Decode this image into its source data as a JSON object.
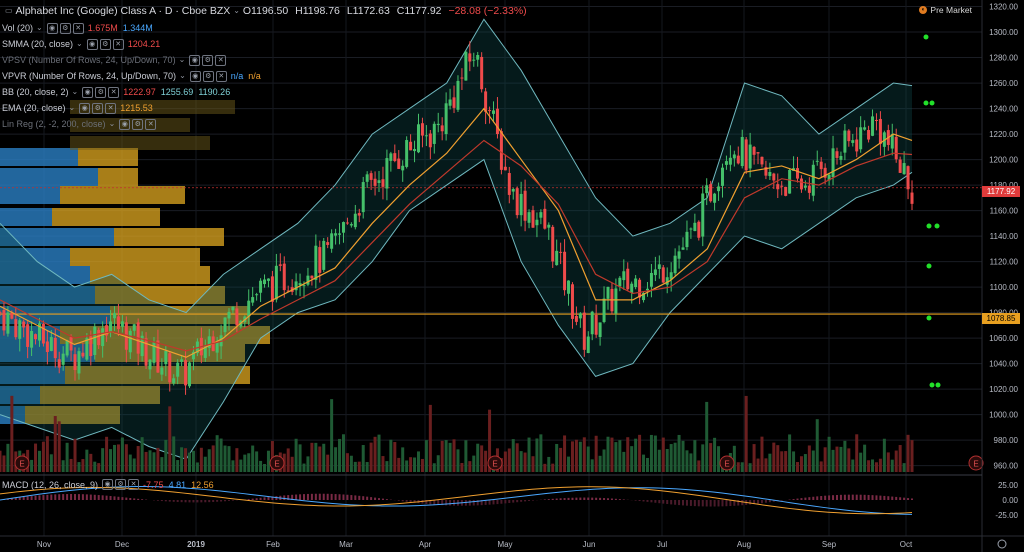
{
  "header": {
    "title": "Alphabet Inc (Google) Class A · D · Cboe BZX",
    "open": "O1196.50",
    "high": "H1198.76",
    "low": "L1172.63",
    "close": "C1177.92",
    "change": "−28.08 (−2.33%)",
    "pre_market": "Pre Market"
  },
  "indicators": [
    {
      "label": "Vol (20)",
      "values": [
        "1.675M",
        "1.344M"
      ],
      "colors": [
        "#ef4b4b",
        "#4aa8ff"
      ]
    },
    {
      "label": "SMMA (20, close)",
      "values": [
        "1204.21"
      ],
      "colors": [
        "#ef4b4b"
      ]
    },
    {
      "label": "VPSV (Number Of Rows, 24, Up/Down, 70)",
      "values": [],
      "colors": []
    },
    {
      "label": "VPVR (Number Of Rows, 24, Up/Down, 70)",
      "values": [
        "n/a",
        "n/a"
      ],
      "colors": [
        "#4aa8ff",
        "#f0a030"
      ]
    },
    {
      "label": "BB (20, close, 2)",
      "values": [
        "1222.97",
        "1255.69",
        "1190.26"
      ],
      "colors": [
        "#ef4b4b",
        "#7fd0d6",
        "#7fd0d6"
      ]
    },
    {
      "label": "EMA (20, close)",
      "values": [
        "1215.53"
      ],
      "colors": [
        "#f0a030"
      ]
    },
    {
      "label": "Lin Reg (2, -2, 200, close)",
      "values": [],
      "colors": []
    }
  ],
  "macd": {
    "label": "MACD (12, 26, close, 9)",
    "values": [
      "-7.75",
      "4.81",
      "12.56"
    ],
    "colors": [
      "#ef4b4b",
      "#4aa8ff",
      "#f0a030"
    ]
  },
  "price_tags": {
    "last": "1177.92",
    "poc": "1078.85"
  },
  "colors": {
    "up": "#45c06a",
    "down": "#ef4b4b",
    "bb": "#6fb8bf",
    "ema": "#f0a030",
    "smma": "#c0392b",
    "vp_up": "#2a7fc4",
    "vp_down": "#e0a820"
  },
  "chart_data": {
    "type": "candlestick",
    "x_ticks": [
      "Nov",
      "Dec",
      "2019",
      "Feb",
      "Mar",
      "Apr",
      "May",
      "Jun",
      "Jul",
      "Aug",
      "Sep",
      "Oct"
    ],
    "y_ticks": [
      "1320.00",
      "1300.00",
      "1280.00",
      "1260.00",
      "1240.00",
      "1220.00",
      "1200.00",
      "1180.00",
      "1160.00",
      "1140.00",
      "1120.00",
      "1100.00",
      "1080.00",
      "1060.00",
      "1040.00",
      "1020.00",
      "1000.00",
      "980.00",
      "960.00"
    ],
    "ylim": [
      955,
      1322
    ],
    "macd_ticks": [
      "25.00",
      "0.00",
      "-25.00"
    ],
    "macd_lim": [
      -40,
      40
    ],
    "earnings_markers": [
      "E",
      "E",
      "E",
      "E",
      "E"
    ],
    "x_dates": [
      "2018-10-24",
      "2018-11-07",
      "2018-11-21",
      "2018-12-05",
      "2018-12-19",
      "2019-01-02",
      "2019-01-16",
      "2019-01-30",
      "2019-02-13",
      "2019-02-27",
      "2019-03-13",
      "2019-03-27",
      "2019-04-10",
      "2019-04-24",
      "2019-05-08",
      "2019-05-22",
      "2019-06-05",
      "2019-06-19",
      "2019-07-03",
      "2019-07-17",
      "2019-07-31",
      "2019-08-14",
      "2019-08-28",
      "2019-09-11",
      "2019-09-25",
      "2019-10-02"
    ],
    "close_path": [
      1080,
      1060,
      1045,
      1075,
      1050,
      1030,
      1070,
      1095,
      1110,
      1125,
      1175,
      1205,
      1225,
      1285,
      1175,
      1145,
      1060,
      1100,
      1110,
      1140,
      1215,
      1185,
      1180,
      1205,
      1230,
      1178
    ],
    "bb_upper": [
      1150,
      1120,
      1100,
      1110,
      1090,
      1080,
      1110,
      1130,
      1150,
      1180,
      1220,
      1240,
      1260,
      1310,
      1270,
      1220,
      1170,
      1140,
      1150,
      1170,
      1260,
      1250,
      1220,
      1240,
      1260,
      1258
    ],
    "bb_lower": [
      1000,
      990,
      980,
      990,
      975,
      965,
      1010,
      1060,
      1080,
      1090,
      1120,
      1160,
      1180,
      1200,
      1120,
      1070,
      1030,
      1040,
      1080,
      1110,
      1140,
      1130,
      1150,
      1170,
      1180,
      1190
    ],
    "ema": [
      1085,
      1070,
      1055,
      1065,
      1055,
      1045,
      1060,
      1085,
      1100,
      1115,
      1150,
      1180,
      1205,
      1240,
      1200,
      1160,
      1090,
      1090,
      1105,
      1130,
      1190,
      1195,
      1185,
      1200,
      1220,
      1215
    ],
    "smma": [
      1090,
      1075,
      1060,
      1065,
      1058,
      1050,
      1058,
      1075,
      1090,
      1105,
      1135,
      1165,
      1190,
      1215,
      1195,
      1165,
      1110,
      1095,
      1100,
      1120,
      1170,
      1185,
      1180,
      1195,
      1205,
      1204
    ],
    "last": 1177.92,
    "poc": 1078.85
  }
}
